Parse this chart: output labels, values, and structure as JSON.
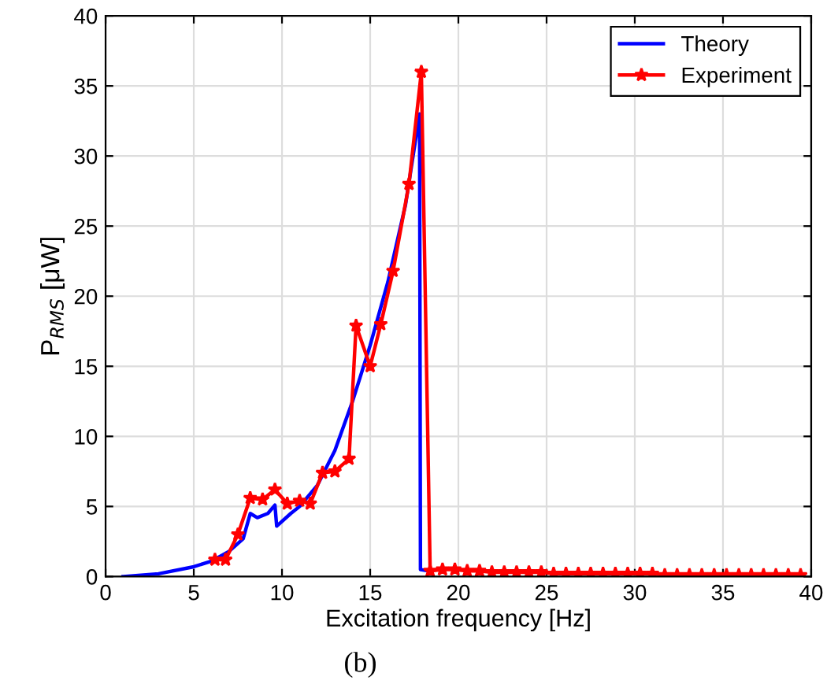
{
  "chart_data": {
    "type": "line",
    "xlabel": "Excitation frequency [Hz]",
    "ylabel": "P$_{RMS}$ [μW]",
    "annotations": [
      "(b)"
    ],
    "xlim": [
      0,
      40
    ],
    "ylim": [
      0,
      40
    ],
    "xticks": [
      0,
      5,
      10,
      15,
      20,
      25,
      30,
      35,
      40
    ],
    "yticks": [
      0,
      5,
      10,
      15,
      20,
      25,
      30,
      35,
      40
    ],
    "grid": true,
    "legend": "top right",
    "series": [
      {
        "name": "Theory",
        "color": "#0000ff",
        "marker": "none",
        "x": [
          1,
          3,
          5,
          6,
          7,
          7.8,
          8.2,
          8.6,
          9.2,
          9.6,
          9.7,
          10.5,
          11,
          12,
          13,
          14,
          15,
          16,
          17,
          17.8,
          17.85,
          18.3
        ],
        "values": [
          0,
          0.2,
          0.7,
          1.1,
          1.8,
          2.7,
          4.5,
          4.2,
          4.5,
          5.1,
          3.6,
          4.5,
          5.0,
          6.5,
          9,
          12.5,
          16.5,
          21,
          26.5,
          33,
          0.5,
          0.4
        ]
      },
      {
        "name": "Experiment",
        "color": "#ff0000",
        "marker": "star",
        "x": [
          6.2,
          6.8,
          7.5,
          8.2,
          8.9,
          9.6,
          10.3,
          11.0,
          11.6,
          12.3,
          13.0,
          13.8,
          14.2,
          15.0,
          15.6,
          16.3,
          17.2,
          17.9,
          18.4,
          19.1,
          19.8,
          20.5,
          21.2,
          21.9,
          22.6,
          23.3,
          24.0,
          24.7,
          25.4,
          26.1,
          26.8,
          27.5,
          28.2,
          28.9,
          29.6,
          30.3,
          31.0,
          31.7,
          32.4,
          33.1,
          33.8,
          34.5,
          35.2,
          35.9,
          36.6,
          37.3,
          38.0,
          38.7,
          39.4
        ],
        "values": [
          1.2,
          1.2,
          3.0,
          5.6,
          5.5,
          6.2,
          5.2,
          5.4,
          5.2,
          7.4,
          7.5,
          8.4,
          17.9,
          15,
          18,
          21.8,
          28,
          36,
          0.4,
          0.5,
          0.5,
          0.4,
          0.4,
          0.3,
          0.3,
          0.3,
          0.3,
          0.3,
          0.2,
          0.2,
          0.2,
          0.2,
          0.2,
          0.2,
          0.2,
          0.2,
          0.2,
          0.1,
          0.1,
          0.1,
          0.1,
          0.1,
          0.1,
          0.1,
          0.1,
          0.1,
          0.1,
          0.1,
          0.1
        ]
      }
    ]
  }
}
